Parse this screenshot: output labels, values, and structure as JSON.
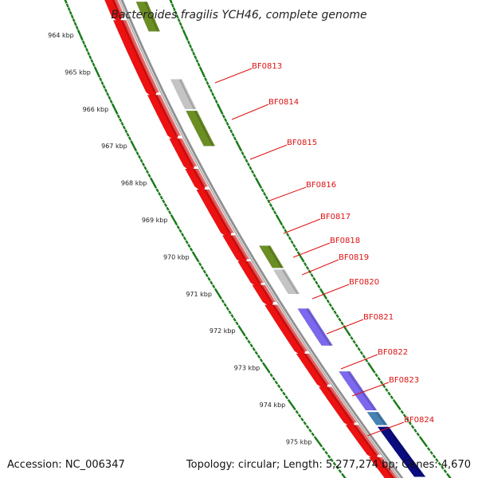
{
  "title": "Bacteroides fragilis YCH46, complete genome",
  "footer": {
    "accession": "Accession: NC_006347",
    "topology": "Topology: circular; Length: 5,277,274 bp; Genes: 4,670"
  },
  "kbp_labels": [
    "964 kbp",
    "965 kbp",
    "966 kbp",
    "967 kbp",
    "968 kbp",
    "969 kbp",
    "970 kbp",
    "971 kbp",
    "972 kbp",
    "973 kbp",
    "974 kbp",
    "975 kbp"
  ],
  "gene_labels": [
    "BF0813",
    "BF0814",
    "BF0815",
    "BF0816",
    "BF0817",
    "BF0818",
    "BF0819",
    "BF0820",
    "BF0821",
    "BF0822",
    "BF0823",
    "BF0824"
  ],
  "colors": {
    "red": "#ee1111",
    "grey": "#c4c4c4",
    "olive": "#6b8e23",
    "purple": "#7b68ee",
    "teal": "#4682b4",
    "navy": "#0b0b80",
    "backbone": "#8f8f8f",
    "tick": "#1a7a1a",
    "label_line": "#dd1111"
  }
}
